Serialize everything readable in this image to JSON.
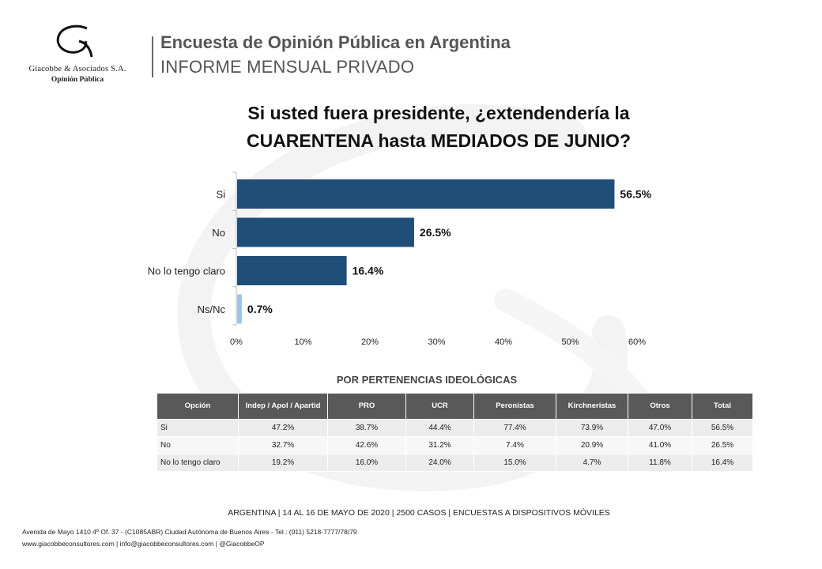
{
  "logo": {
    "name": "Giacobbe & Asociados S.A.",
    "subtitle": "Opinión Pública",
    "icon": "g-swirl-logo"
  },
  "header": {
    "title": "Encuesta de Opinión Pública en Argentina",
    "subtitle": "INFORME MENSUAL PRIVADO"
  },
  "chart_data": {
    "type": "bar",
    "orientation": "horizontal",
    "title_line1": "Si usted fuera presidente, ¿extendendería la",
    "title_line2": "CUARENTENA  hasta MEDIADOS DE JUNIO?",
    "categories": [
      "Si",
      "No",
      "No lo tengo claro",
      "Ns/Nc"
    ],
    "values": [
      56.5,
      26.5,
      16.4,
      0.7
    ],
    "value_labels": [
      "56.5%",
      "26.5%",
      "16.4%",
      "0.7%"
    ],
    "bar_colors": [
      "#1f4e79",
      "#1f4e79",
      "#1f4e79",
      "#9dc3e6"
    ],
    "xlim": [
      0,
      60
    ],
    "xticks": [
      0,
      10,
      20,
      30,
      40,
      50,
      60
    ],
    "xtick_labels": [
      "0%",
      "10%",
      "20%",
      "30%",
      "40%",
      "50%",
      "60%"
    ],
    "grid": false,
    "legend": "none"
  },
  "table": {
    "title": "POR PERTENENCIAS IDEOLÓGICAS",
    "headers": [
      "Opción",
      "Indep / Apol / Apartid",
      "PRO",
      "UCR",
      "Peronistas",
      "Kirchneristas",
      "Otros",
      "Total"
    ],
    "rows": [
      [
        "Si",
        "47.2%",
        "38.7%",
        "44.4%",
        "77.4%",
        "73.9%",
        "47.0%",
        "56.5%"
      ],
      [
        "No",
        "32.7%",
        "42.6%",
        "31.2%",
        "7.4%",
        "20.9%",
        "41.0%",
        "26.5%"
      ],
      [
        "No lo tengo claro",
        "19.2%",
        "16.0%",
        "24.0%",
        "15.0%",
        "4.7%",
        "11.8%",
        "16.4%"
      ]
    ]
  },
  "footer": {
    "main": "ARGENTINA  |  14 AL  16 DE MAYO DE 2020 | 2500 CASOS  | ENCUESTAS  A DISPOSITIVOS MÓVILES",
    "address": "Avenida de Mayo 1410 4º Of. 37 - (C1085ABR) Ciudad Autónoma de Buenos Aires - Tel.: (011) 5218-7777/78/79",
    "web": "www.giacobbeconsultores.com | info@giacobbeconsultores.com | @GiacobbeOP"
  }
}
